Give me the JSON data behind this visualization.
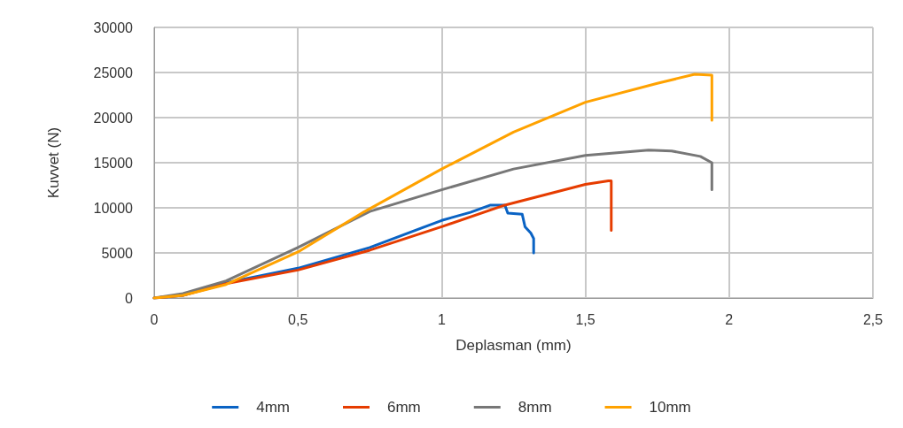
{
  "chart_data": {
    "type": "line",
    "xlabel": "Deplasman (mm)",
    "ylabel": "Kuvvet (N)",
    "xlim": [
      0,
      2.5
    ],
    "xticks": [
      {
        "value": 0,
        "label": "0"
      },
      {
        "value": 0.5,
        "label": "0,5"
      },
      {
        "value": 1,
        "label": "1"
      },
      {
        "value": 1.5,
        "label": "1,5"
      },
      {
        "value": 2,
        "label": "2"
      },
      {
        "value": 2.5,
        "label": "2,5"
      }
    ],
    "ylim": [
      0,
      30000
    ],
    "yticks": [
      0,
      5000,
      10000,
      15000,
      20000,
      25000,
      30000
    ],
    "grid": true,
    "legend": "bottom",
    "marker": "none",
    "line_style": "solid",
    "series": [
      {
        "name": "4mm",
        "color": "#0a63c4",
        "x": [
          0,
          0.1,
          0.25,
          0.5,
          0.75,
          1,
          1.1,
          1.17,
          1.22,
          1.23,
          1.28,
          1.29,
          1.31,
          1.32,
          1.32
        ],
        "values": [
          0,
          300,
          1700,
          3300,
          5600,
          8600,
          9500,
          10300,
          10300,
          9400,
          9300,
          7900,
          7200,
          6600,
          5000
        ]
      },
      {
        "name": "6mm",
        "color": "#e63c00",
        "x": [
          0,
          0.1,
          0.25,
          0.5,
          0.75,
          1,
          1.22,
          1.5,
          1.58,
          1.59,
          1.59
        ],
        "values": [
          0,
          300,
          1600,
          3100,
          5300,
          7900,
          10300,
          12600,
          13000,
          13000,
          7500
        ]
      },
      {
        "name": "8mm",
        "color": "#777777",
        "x": [
          0,
          0.1,
          0.25,
          0.5,
          0.75,
          1,
          1.25,
          1.5,
          1.72,
          1.8,
          1.9,
          1.94,
          1.94
        ],
        "values": [
          0,
          500,
          1900,
          5600,
          9600,
          12000,
          14300,
          15800,
          16400,
          16300,
          15700,
          15000,
          12000
        ]
      },
      {
        "name": "10mm",
        "color": "#ffa200",
        "x": [
          0,
          0.1,
          0.25,
          0.5,
          0.73,
          1,
          1.25,
          1.5,
          1.75,
          1.88,
          1.94,
          1.94
        ],
        "values": [
          0,
          300,
          1500,
          5100,
          9550,
          14300,
          18400,
          21700,
          23800,
          24800,
          24700,
          19700
        ]
      }
    ]
  }
}
